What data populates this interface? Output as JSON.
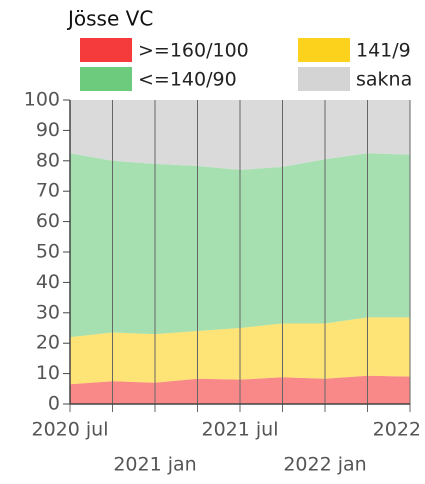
{
  "chart_data": {
    "type": "stacked_area",
    "title": "Jösse VC",
    "categories": [
      "2020 jul",
      null,
      "2021 jan",
      null,
      "2021 jul",
      null,
      "2022 jan",
      null,
      "2022"
    ],
    "series": [
      {
        "name": ">=160/100",
        "color": "#f53b3b",
        "values": [
          6.5,
          7.5,
          7,
          8.3,
          8,
          8.8,
          8.3,
          9.3,
          9
        ]
      },
      {
        "name": "141/9",
        "color": "#fdd21c",
        "values": [
          15.5,
          16,
          16,
          15.7,
          17,
          17.7,
          18.2,
          19.2,
          19.5
        ]
      },
      {
        "name": "<=140/90",
        "color": "#6ccb7c",
        "values": [
          60.5,
          56.5,
          56,
          54.3,
          52,
          51.5,
          54,
          54,
          53.5
        ]
      },
      {
        "name": "sakna",
        "color": "#d4d4d4",
        "values": [
          17.5,
          20,
          21,
          21.7,
          23,
          22,
          19.5,
          17.5,
          18
        ]
      }
    ],
    "ylim": [
      0,
      100
    ],
    "yticks": [
      0,
      10,
      20,
      30,
      40,
      50,
      60,
      70,
      80,
      90,
      100
    ]
  }
}
